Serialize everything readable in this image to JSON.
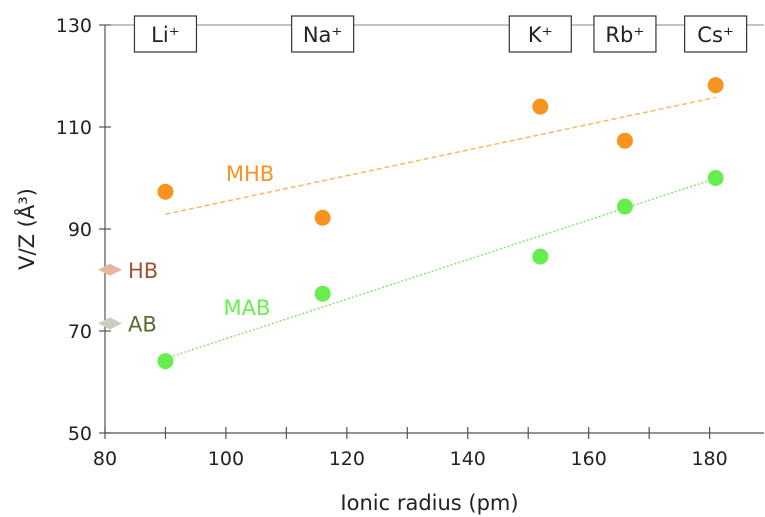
{
  "chart_data": {
    "type": "scatter",
    "xlabel": "Ionic radius (pm)",
    "ylabel": "V/Z (Å³)",
    "xlim": [
      80,
      189
    ],
    "ylim": [
      50,
      130
    ],
    "xticks": [
      80,
      100,
      120,
      140,
      160,
      180
    ],
    "yticks": [
      50,
      70,
      90,
      110,
      130
    ],
    "grid": false,
    "ions": [
      {
        "label": "Li⁺",
        "x": 90
      },
      {
        "label": "Na⁺",
        "x": 116
      },
      {
        "label": "K⁺",
        "x": 152
      },
      {
        "label": "Rb⁺",
        "x": 166
      },
      {
        "label": "Cs⁺",
        "x": 181
      }
    ],
    "series": [
      {
        "name": "MHB",
        "color": "#F7941D",
        "x": [
          90,
          116,
          152,
          166,
          181
        ],
        "y": [
          97.3,
          92.2,
          114.0,
          107.3,
          118.2
        ],
        "trend": {
          "x": [
            90,
            181
          ],
          "y": [
            92.9,
            115.8
          ],
          "color": "#F7B86A"
        }
      },
      {
        "name": "MAB",
        "color": "#66EE4F",
        "x": [
          90,
          116,
          152,
          166,
          181
        ],
        "y": [
          64.1,
          77.3,
          84.6,
          94.4,
          100.0
        ],
        "trend": {
          "x": [
            90,
            181
          ],
          "y": [
            64.6,
            99.9
          ],
          "color": "#8FE07A"
        }
      }
    ],
    "labels": [
      {
        "text": "MHB",
        "color": "#F7941D"
      },
      {
        "text": "MAB",
        "color": "#66EE4F"
      }
    ],
    "markers": [
      {
        "name": "HB",
        "y": 82,
        "marker_color": "#E6B8A2",
        "text_color": "#A0522D"
      },
      {
        "name": "AB",
        "y": 71.5,
        "marker_color": "#C9CCC0",
        "text_color": "#556B2F"
      }
    ]
  }
}
